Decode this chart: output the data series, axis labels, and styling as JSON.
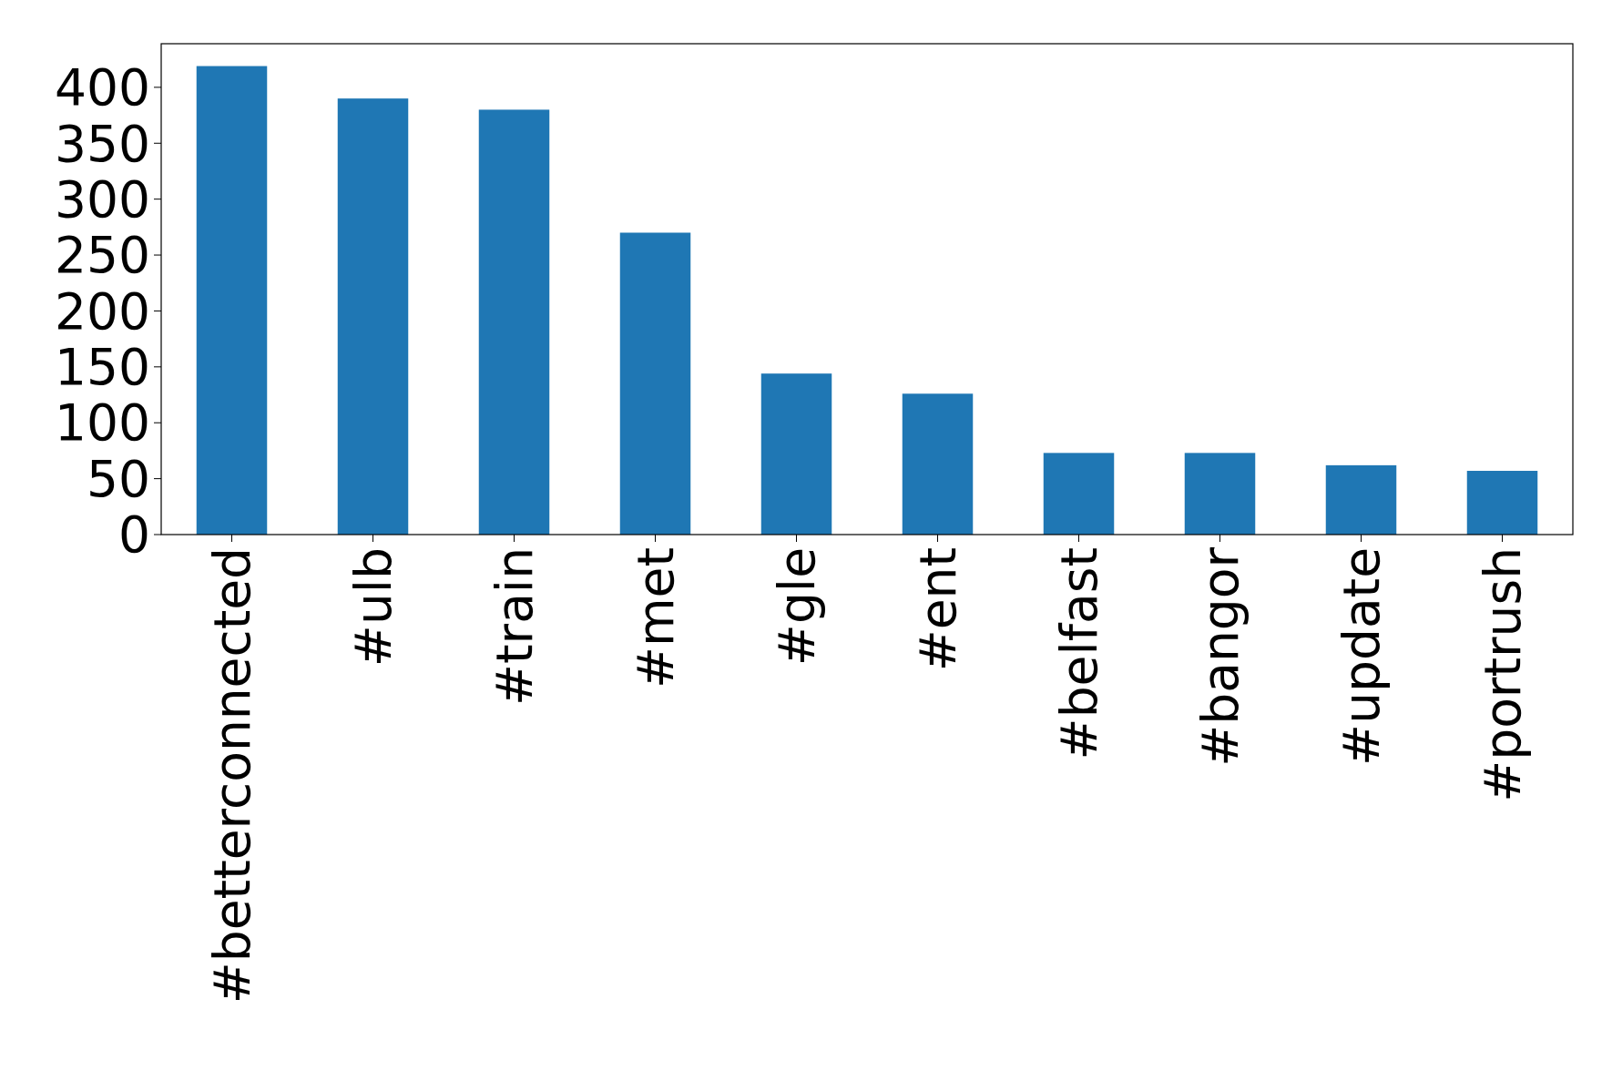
{
  "chart_data": {
    "type": "bar",
    "categories": [
      "#betterconnected",
      "#ulb",
      "#train",
      "#met",
      "#gle",
      "#ent",
      "#belfast",
      "#bangor",
      "#update",
      "#portrush"
    ],
    "values": [
      419,
      390,
      380,
      270,
      144,
      126,
      73,
      73,
      62,
      57
    ],
    "color": "#1f77b4",
    "ylim": [
      0,
      439
    ],
    "yticks": [
      0,
      50,
      100,
      150,
      200,
      250,
      300,
      350,
      400
    ],
    "grid": false
  }
}
